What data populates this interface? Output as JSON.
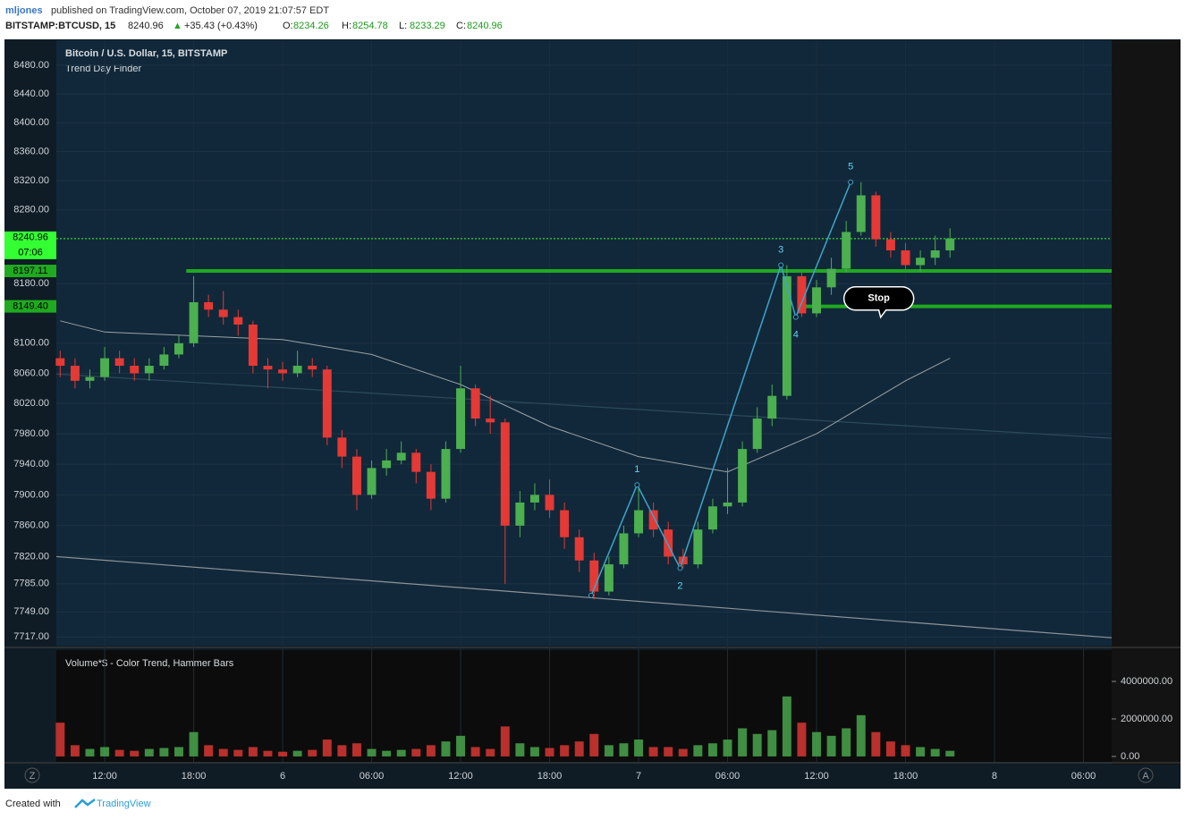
{
  "header": {
    "author": "mljones",
    "published": "published on TradingView.com, October 07, 2019 21:07:57 EDT",
    "symbol": "BITSTAMP:BTCUSD, 15",
    "last": "8240.96",
    "arrow": "▲",
    "change": "+35.43 (+0.43%)",
    "ohlc": [
      {
        "label": "O:",
        "value": "8234.26"
      },
      {
        "label": "H:",
        "value": "8254.78"
      },
      {
        "label": "L:",
        "value": "8233.29"
      },
      {
        "label": "C:",
        "value": "8240.96"
      }
    ]
  },
  "footer": {
    "created": "Created with",
    "brand": "TradingView"
  },
  "buttons": {
    "left": "Z",
    "right": "A"
  },
  "chart_data": {
    "type": "candlestick",
    "title": "Bitcoin / U.S. Dollar, 15, BITSTAMP",
    "subtitle": "Trend Day Finder",
    "log_scale": true,
    "up_color": "#4caf50",
    "down_color": "#e53935",
    "xlim": [
      8.74,
      79.9
    ],
    "xticks": [
      {
        "value": 12,
        "label": "12:00"
      },
      {
        "value": 18,
        "label": "18:00"
      },
      {
        "value": 24,
        "label": "6"
      },
      {
        "value": 30,
        "label": "06:00"
      },
      {
        "value": 36,
        "label": "12:00"
      },
      {
        "value": 42,
        "label": "18:00"
      },
      {
        "value": 48,
        "label": "7"
      },
      {
        "value": 54,
        "label": "06:00"
      },
      {
        "value": 60,
        "label": "12:00"
      },
      {
        "value": 66,
        "label": "18:00"
      },
      {
        "value": 72,
        "label": "8"
      },
      {
        "value": 78,
        "label": "06:00"
      }
    ],
    "ylim": [
      7706,
      8515
    ],
    "yticks": [
      {
        "value": 8480,
        "label": "8480.00"
      },
      {
        "value": 8440,
        "label": "8440.00"
      },
      {
        "value": 8400,
        "label": "8400.00"
      },
      {
        "value": 8360,
        "label": "8360.00"
      },
      {
        "value": 8320,
        "label": "8320.00"
      },
      {
        "value": 8280,
        "label": "8280.00"
      },
      {
        "value": 8180,
        "label": "8180.00"
      },
      {
        "value": 8100,
        "label": "8100.00"
      },
      {
        "value": 8060,
        "label": "8060.00"
      },
      {
        "value": 8020,
        "label": "8020.00"
      },
      {
        "value": 7980,
        "label": "7980.00"
      },
      {
        "value": 7940,
        "label": "7940.00"
      },
      {
        "value": 7900,
        "label": "7900.00"
      },
      {
        "value": 7860,
        "label": "7860.00"
      },
      {
        "value": 7820,
        "label": "7820.00"
      },
      {
        "value": 7785,
        "label": "7785.00"
      },
      {
        "value": 7749,
        "label": "7749.00"
      },
      {
        "value": 7717,
        "label": "7717.00"
      }
    ],
    "x": [
      9,
      10,
      11,
      12,
      13,
      14,
      15,
      16,
      17,
      18,
      19,
      20,
      21,
      22,
      23,
      24,
      25,
      26,
      27,
      28,
      29,
      30,
      31,
      32,
      33,
      34,
      35,
      36,
      37,
      38,
      39,
      40,
      41,
      42,
      43,
      44,
      45,
      46,
      47,
      48,
      49,
      50,
      51,
      52,
      53,
      54,
      55,
      56,
      57,
      58,
      59,
      60,
      61,
      62,
      63,
      64,
      65,
      66,
      67,
      68,
      69
    ],
    "candles": [
      [
        8080,
        8090,
        8055,
        8070
      ],
      [
        8070,
        8080,
        8040,
        8050
      ],
      [
        8050,
        8065,
        8040,
        8055
      ],
      [
        8055,
        8095,
        8050,
        8080
      ],
      [
        8080,
        8090,
        8060,
        8070
      ],
      [
        8070,
        8080,
        8050,
        8060
      ],
      [
        8060,
        8080,
        8050,
        8070
      ],
      [
        8070,
        8095,
        8065,
        8085
      ],
      [
        8085,
        8110,
        8080,
        8100
      ],
      [
        8100,
        8190,
        8095,
        8155
      ],
      [
        8155,
        8165,
        8135,
        8145
      ],
      [
        8145,
        8170,
        8125,
        8135
      ],
      [
        8135,
        8145,
        8110,
        8125
      ],
      [
        8125,
        8130,
        8060,
        8070
      ],
      [
        8070,
        8080,
        8040,
        8065
      ],
      [
        8065,
        8075,
        8050,
        8060
      ],
      [
        8060,
        8090,
        8055,
        8070
      ],
      [
        8070,
        8080,
        8055,
        8065
      ],
      [
        8065,
        8070,
        7965,
        7975
      ],
      [
        7975,
        7985,
        7935,
        7950
      ],
      [
        7950,
        7960,
        7880,
        7900
      ],
      [
        7900,
        7945,
        7895,
        7935
      ],
      [
        7935,
        7960,
        7925,
        7945
      ],
      [
        7945,
        7970,
        7940,
        7955
      ],
      [
        7955,
        7960,
        7915,
        7930
      ],
      [
        7930,
        7940,
        7880,
        7895
      ],
      [
        7895,
        7970,
        7890,
        7960
      ],
      [
        7960,
        8070,
        7955,
        8040
      ],
      [
        8040,
        8045,
        7990,
        8000
      ],
      [
        8000,
        8030,
        7980,
        7995
      ],
      [
        7995,
        8000,
        7785,
        7860
      ],
      [
        7860,
        7905,
        7845,
        7890
      ],
      [
        7890,
        7915,
        7880,
        7900
      ],
      [
        7900,
        7920,
        7870,
        7880
      ],
      [
        7880,
        7890,
        7830,
        7845
      ],
      [
        7845,
        7855,
        7800,
        7815
      ],
      [
        7815,
        7825,
        7765,
        7775
      ],
      [
        7775,
        7820,
        7770,
        7810
      ],
      [
        7810,
        7860,
        7805,
        7850
      ],
      [
        7850,
        7913,
        7845,
        7880
      ],
      [
        7880,
        7890,
        7845,
        7855
      ],
      [
        7855,
        7865,
        7810,
        7820
      ],
      [
        7820,
        7830,
        7805,
        7810
      ],
      [
        7810,
        7865,
        7805,
        7855
      ],
      [
        7855,
        7895,
        7850,
        7885
      ],
      [
        7885,
        7935,
        7875,
        7890
      ],
      [
        7890,
        7970,
        7885,
        7960
      ],
      [
        7960,
        8015,
        7955,
        8000
      ],
      [
        8000,
        8045,
        7990,
        8030
      ],
      [
        8030,
        8205,
        8025,
        8190
      ],
      [
        8190,
        8195,
        8135,
        8140
      ],
      [
        8140,
        8185,
        8135,
        8175
      ],
      [
        8175,
        8215,
        8165,
        8200
      ],
      [
        8200,
        8265,
        8195,
        8250
      ],
      [
        8250,
        8318,
        8245,
        8300
      ],
      [
        8300,
        8305,
        8230,
        8240
      ],
      [
        8240,
        8250,
        8215,
        8225
      ],
      [
        8225,
        8235,
        8195,
        8205
      ],
      [
        8205,
        8225,
        8195,
        8215
      ],
      [
        8215,
        8245,
        8205,
        8225
      ],
      [
        8225,
        8255,
        8215,
        8241
      ]
    ],
    "ma": {
      "color": "#9aa3a8",
      "x": [
        9,
        12,
        24,
        30,
        36,
        42,
        48,
        54,
        60,
        66,
        69
      ],
      "values": [
        8130,
        8115,
        8105,
        8085,
        8045,
        7990,
        7950,
        7930,
        7980,
        8050,
        8080
      ]
    },
    "trendlines": [
      {
        "color": "#8d949a",
        "x": [
          8.74,
          79.9
        ],
        "values": [
          7820,
          7716
        ]
      },
      {
        "color": "#2c4a5a",
        "x": [
          8.74,
          79.9
        ],
        "values": [
          8059,
          7974
        ]
      }
    ],
    "wave": {
      "color": "#3aa6c9",
      "labels": [
        null,
        "1",
        "2",
        "3",
        "4",
        "5"
      ],
      "x": [
        44.8,
        47.9,
        50.8,
        57.6,
        58.6,
        62.3
      ],
      "values": [
        7770,
        7913,
        7805,
        8205,
        8135,
        8318
      ]
    },
    "levels": [
      {
        "label": "8197.11",
        "value": 8197.11,
        "start": 17.5,
        "color": "#1faa1f"
      },
      {
        "label": "8149.40",
        "value": 8149.4,
        "start": 59.2,
        "color": "#1faa1f"
      }
    ],
    "last_price": {
      "label": "8240.96",
      "value": 8240.96,
      "countdown": "07:06",
      "color": "#33ff33"
    },
    "callout": {
      "text": "Stop",
      "x": 64.2,
      "value": 8160
    },
    "volume": {
      "title": "Volume*$ - Color Trend, Hammer Bars",
      "ylim": [
        -290000,
        5670000
      ],
      "yticks": [
        {
          "value": 4000000,
          "label": "4000000.00"
        },
        {
          "value": 2000000,
          "label": "2000000.00"
        },
        {
          "value": 0,
          "label": "0.00"
        }
      ],
      "values": [
        1800000,
        600000,
        400000,
        500000,
        350000,
        300000,
        400000,
        450000,
        500000,
        1300000,
        600000,
        400000,
        350000,
        500000,
        300000,
        250000,
        300000,
        350000,
        900000,
        600000,
        700000,
        400000,
        300000,
        350000,
        400000,
        600000,
        800000,
        1100000,
        500000,
        400000,
        1600000,
        700000,
        500000,
        450000,
        600000,
        800000,
        1200000,
        600000,
        700000,
        900000,
        500000,
        500000,
        400000,
        600000,
        700000,
        900000,
        1500000,
        1200000,
        1400000,
        3200000,
        1800000,
        1300000,
        1100000,
        1500000,
        2200000,
        1300000,
        800000,
        600000,
        500000,
        400000,
        300000
      ]
    }
  }
}
